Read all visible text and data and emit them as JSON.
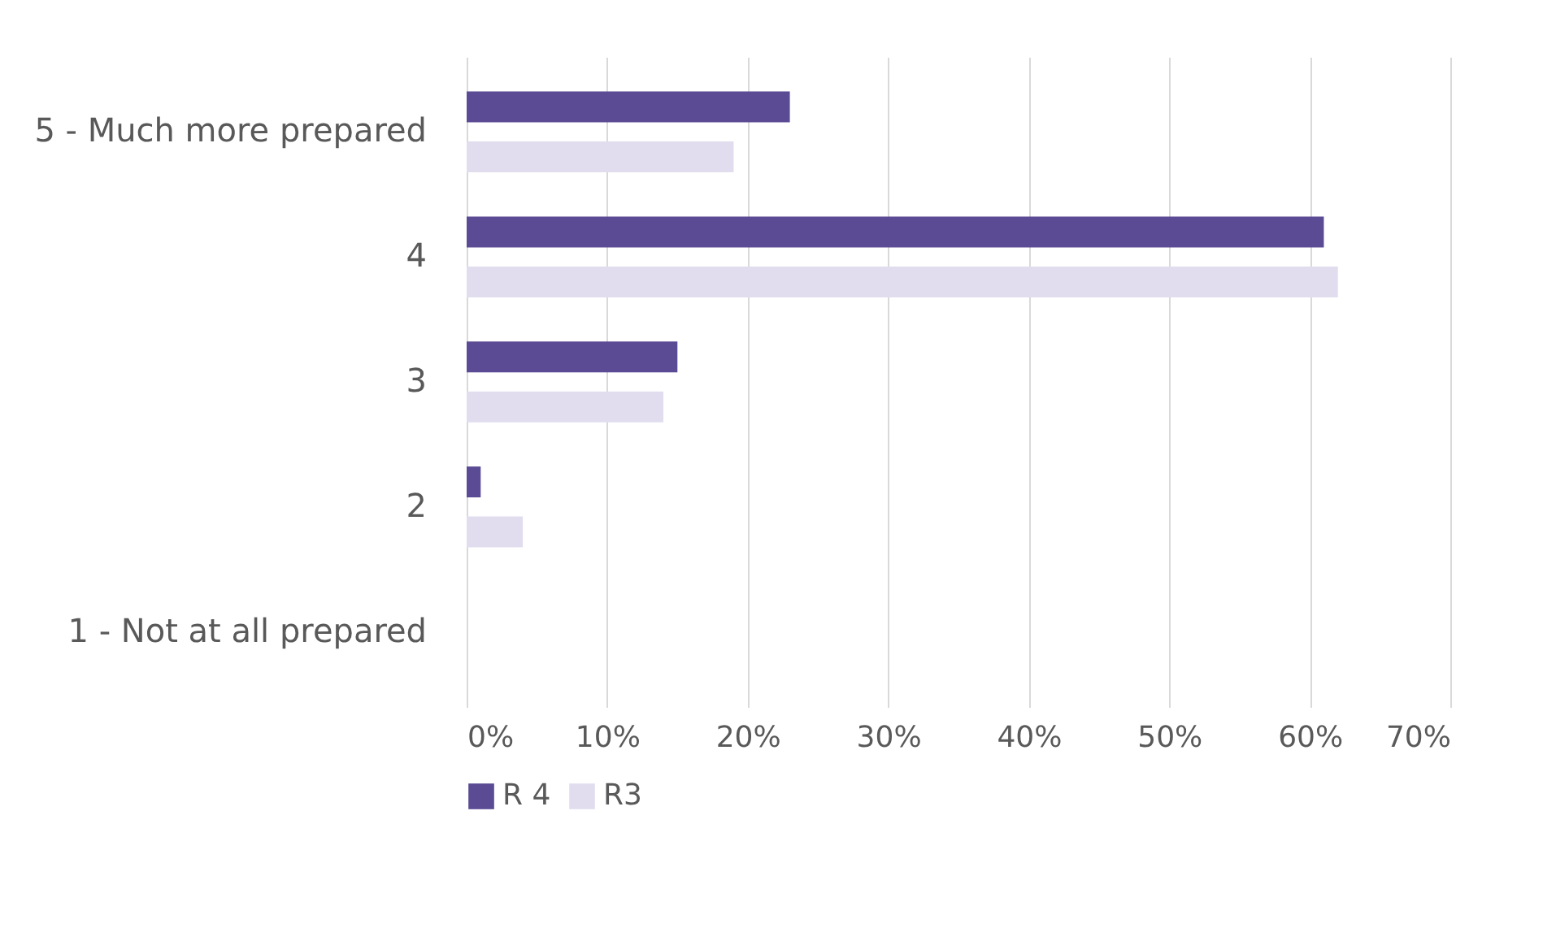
{
  "chart_data": {
    "type": "bar",
    "orientation": "horizontal",
    "categories": [
      "5 - Much more prepared",
      "4",
      "3",
      "2",
      "1 - Not at all prepared"
    ],
    "series": [
      {
        "name": "R 4",
        "color": "#5b4a94",
        "values": [
          23,
          61,
          15,
          1,
          0
        ]
      },
      {
        "name": "R3",
        "color": "#e1ddef",
        "values": [
          19,
          62,
          14,
          4,
          0
        ]
      }
    ],
    "xlim": [
      0,
      70
    ],
    "xticks": [
      {
        "value": 0,
        "label": "0%"
      },
      {
        "value": 10,
        "label": "10%"
      },
      {
        "value": 20,
        "label": "20%"
      },
      {
        "value": 30,
        "label": "30%"
      },
      {
        "value": 40,
        "label": "40%"
      },
      {
        "value": 50,
        "label": "50%"
      },
      {
        "value": 60,
        "label": "60%"
      },
      {
        "value": 70,
        "label": "70%"
      }
    ],
    "grid": "x",
    "legend": "bottom"
  }
}
